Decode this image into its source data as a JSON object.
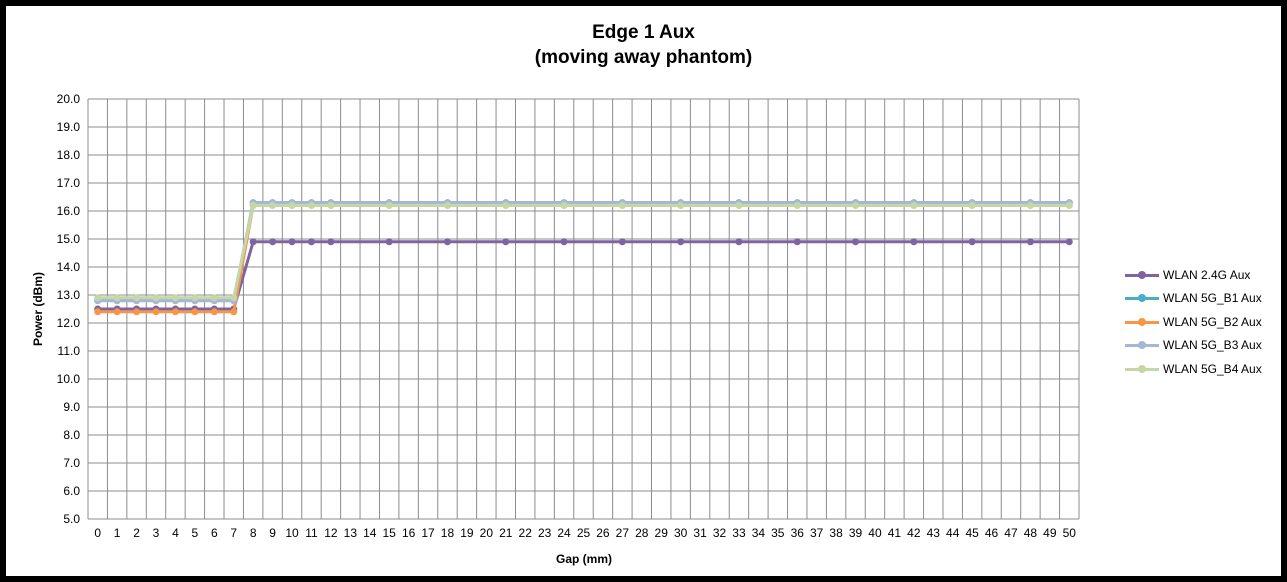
{
  "chart_data": {
    "type": "line",
    "title_line1": "Edge 1 Aux",
    "title_line2": "(moving away phantom)",
    "xlabel": "Gap (mm)",
    "ylabel": "Power (dBm)",
    "ylim": [
      5.0,
      20.0
    ],
    "ystep": 1.0,
    "ytick_labels": [
      "5.0",
      "6.0",
      "7.0",
      "8.0",
      "9.0",
      "10.0",
      "11.0",
      "12.0",
      "13.0",
      "14.0",
      "15.0",
      "16.0",
      "17.0",
      "18.0",
      "19.0",
      "20.0"
    ],
    "x_categories": [
      "0",
      "1",
      "2",
      "3",
      "4",
      "5",
      "6",
      "7",
      "8",
      "9",
      "10",
      "11",
      "12",
      "13",
      "14",
      "15",
      "16",
      "17",
      "18",
      "19",
      "20",
      "21",
      "22",
      "23",
      "24",
      "25",
      "26",
      "27",
      "28",
      "29",
      "30",
      "31",
      "32",
      "33",
      "34",
      "35",
      "36",
      "37",
      "38",
      "39",
      "40",
      "41",
      "42",
      "43",
      "44",
      "45",
      "46",
      "47",
      "48",
      "49",
      "50"
    ],
    "marker_x": [
      0,
      1,
      2,
      3,
      4,
      5,
      6,
      7,
      8,
      9,
      10,
      11,
      12,
      15,
      18,
      21,
      24,
      27,
      30,
      33,
      36,
      39,
      42,
      45,
      48,
      50
    ],
    "grid": true,
    "legend_position": "right",
    "series": [
      {
        "name": "WLAN 2.4G Aux",
        "color": "#8064a2",
        "values": [
          12.5,
          12.5,
          12.5,
          12.5,
          12.5,
          12.5,
          12.5,
          12.5,
          14.9,
          14.9,
          14.9,
          14.9,
          14.9,
          14.9,
          14.9,
          14.9,
          14.9,
          14.9,
          14.9,
          14.9,
          14.9,
          14.9,
          14.9,
          14.9,
          14.9,
          14.9
        ]
      },
      {
        "name": "WLAN 5G_B1 Aux",
        "color": "#4bacc6",
        "values": [
          12.8,
          12.8,
          12.8,
          12.8,
          12.8,
          12.8,
          12.8,
          12.8,
          16.3,
          16.3,
          16.3,
          16.3,
          16.3,
          16.3,
          16.3,
          16.3,
          16.3,
          16.3,
          16.3,
          16.3,
          16.3,
          16.3,
          16.3,
          16.3,
          16.3,
          16.3
        ]
      },
      {
        "name": "WLAN 5G_B2 Aux",
        "color": "#f79646",
        "values": [
          12.4,
          12.4,
          12.4,
          12.4,
          12.4,
          12.4,
          12.4,
          12.4,
          16.2,
          16.2,
          16.2,
          16.2,
          16.2,
          16.2,
          16.2,
          16.2,
          16.2,
          16.2,
          16.2,
          16.2,
          16.2,
          16.2,
          16.2,
          16.2,
          16.2,
          16.2
        ]
      },
      {
        "name": "WLAN 5G_B3 Aux",
        "color": "#a5b6d8",
        "values": [
          12.8,
          12.8,
          12.8,
          12.8,
          12.8,
          12.8,
          12.8,
          12.8,
          16.3,
          16.3,
          16.3,
          16.3,
          16.3,
          16.3,
          16.3,
          16.3,
          16.3,
          16.3,
          16.3,
          16.3,
          16.3,
          16.3,
          16.3,
          16.3,
          16.3,
          16.3
        ]
      },
      {
        "name": "WLAN 5G_B4 Aux",
        "color": "#c4d7a4",
        "values": [
          12.9,
          12.9,
          12.9,
          12.9,
          12.9,
          12.9,
          12.9,
          12.9,
          16.2,
          16.2,
          16.2,
          16.2,
          16.2,
          16.2,
          16.2,
          16.2,
          16.2,
          16.2,
          16.2,
          16.2,
          16.2,
          16.2,
          16.2,
          16.2,
          16.2,
          16.2
        ]
      }
    ]
  }
}
